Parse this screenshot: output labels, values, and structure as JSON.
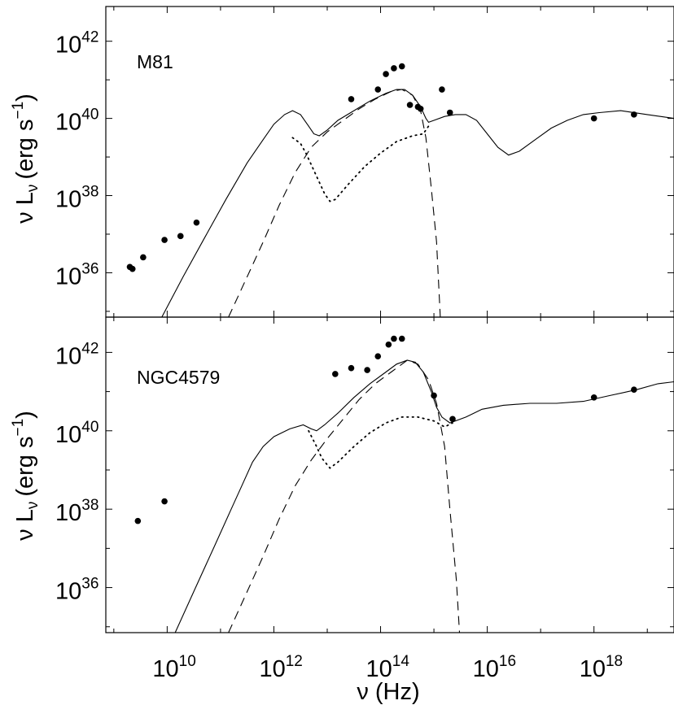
{
  "chart_data": [
    {
      "type": "line",
      "panel_label": "M81",
      "xlabel": "",
      "ylabel": [
        "ν L",
        "ν",
        "(erg s",
        "−1",
        ")"
      ],
      "x_scale": "log",
      "y_scale": "log",
      "xlim_log10": [
        8.85,
        19.5
      ],
      "ylim_log10": [
        34.85,
        42.9
      ],
      "x_ticks": [
        {
          "base": "10",
          "exp": "10"
        },
        {
          "base": "10",
          "exp": "12"
        },
        {
          "base": "10",
          "exp": "14"
        },
        {
          "base": "10",
          "exp": "16"
        },
        {
          "base": "10",
          "exp": "18"
        }
      ],
      "y_ticks": [
        {
          "base": "10",
          "exp": "36"
        },
        {
          "base": "10",
          "exp": "38"
        },
        {
          "base": "10",
          "exp": "40"
        },
        {
          "base": "10",
          "exp": "42"
        }
      ],
      "grid": false,
      "legend": "none",
      "series": [
        {
          "style": "solid",
          "points_log10": [
            [
              9.9,
              34.85
            ],
            [
              10.3,
              35.9
            ],
            [
              10.7,
              36.9
            ],
            [
              11.1,
              37.9
            ],
            [
              11.5,
              38.85
            ],
            [
              11.8,
              39.45
            ],
            [
              12.0,
              39.85
            ],
            [
              12.2,
              40.1
            ],
            [
              12.35,
              40.2
            ],
            [
              12.5,
              40.1
            ],
            [
              12.65,
              39.8
            ],
            [
              12.75,
              39.6
            ],
            [
              12.85,
              39.55
            ],
            [
              13.0,
              39.7
            ],
            [
              13.2,
              39.95
            ],
            [
              13.5,
              40.2
            ],
            [
              13.8,
              40.45
            ],
            [
              14.1,
              40.65
            ],
            [
              14.3,
              40.75
            ],
            [
              14.45,
              40.75
            ],
            [
              14.6,
              40.6
            ],
            [
              14.75,
              40.3
            ],
            [
              14.85,
              40.0
            ],
            [
              14.9,
              39.9
            ],
            [
              15.0,
              39.95
            ],
            [
              15.2,
              40.05
            ],
            [
              15.4,
              40.1
            ],
            [
              15.6,
              40.1
            ],
            [
              15.8,
              39.95
            ],
            [
              16.0,
              39.6
            ],
            [
              16.2,
              39.25
            ],
            [
              16.4,
              39.05
            ],
            [
              16.6,
              39.15
            ],
            [
              16.9,
              39.45
            ],
            [
              17.2,
              39.75
            ],
            [
              17.5,
              39.95
            ],
            [
              17.8,
              40.1
            ],
            [
              18.1,
              40.15
            ],
            [
              18.5,
              40.2
            ],
            [
              19.0,
              40.1
            ],
            [
              19.5,
              40.0
            ]
          ]
        },
        {
          "style": "dashed",
          "points_log10": [
            [
              11.15,
              34.85
            ],
            [
              11.5,
              35.9
            ],
            [
              11.8,
              36.8
            ],
            [
              12.1,
              37.75
            ],
            [
              12.4,
              38.6
            ],
            [
              12.7,
              39.25
            ],
            [
              13.0,
              39.65
            ],
            [
              13.3,
              39.95
            ],
            [
              13.6,
              40.25
            ],
            [
              13.9,
              40.5
            ],
            [
              14.2,
              40.7
            ],
            [
              14.4,
              40.75
            ],
            [
              14.6,
              40.6
            ],
            [
              14.75,
              40.2
            ],
            [
              14.85,
              39.5
            ],
            [
              14.95,
              38.2
            ],
            [
              15.05,
              36.8
            ],
            [
              15.12,
              34.85
            ]
          ]
        },
        {
          "style": "dotted",
          "points_log10": [
            [
              12.35,
              39.5
            ],
            [
              12.5,
              39.35
            ],
            [
              12.6,
              39.1
            ],
            [
              12.8,
              38.5
            ],
            [
              12.95,
              38.05
            ],
            [
              13.05,
              37.85
            ],
            [
              13.15,
              37.9
            ],
            [
              13.4,
              38.3
            ],
            [
              13.7,
              38.75
            ],
            [
              14.0,
              39.1
            ],
            [
              14.3,
              39.4
            ],
            [
              14.6,
              39.55
            ],
            [
              14.8,
              39.6
            ],
            [
              14.9,
              39.8
            ]
          ]
        },
        {
          "style": "points",
          "points_log10": [
            [
              9.3,
              36.15
            ],
            [
              9.35,
              36.1
            ],
            [
              9.55,
              36.4
            ],
            [
              9.95,
              36.85
            ],
            [
              10.25,
              36.95
            ],
            [
              10.55,
              37.3
            ],
            [
              13.45,
              40.5
            ],
            [
              13.95,
              40.75
            ],
            [
              14.1,
              41.15
            ],
            [
              14.25,
              41.3
            ],
            [
              14.4,
              41.35
            ],
            [
              14.55,
              40.35
            ],
            [
              14.7,
              40.3
            ],
            [
              14.75,
              40.25
            ],
            [
              15.15,
              40.75
            ],
            [
              15.3,
              40.15
            ],
            [
              18.0,
              40.0
            ],
            [
              18.75,
              40.1
            ]
          ]
        }
      ]
    },
    {
      "type": "line",
      "panel_label": "NGC4579",
      "xlabel": "ν (Hz)",
      "ylabel": [
        "ν L",
        "ν",
        "(erg s",
        "−1",
        ")"
      ],
      "x_scale": "log",
      "y_scale": "log",
      "xlim_log10": [
        8.85,
        19.5
      ],
      "ylim_log10": [
        34.85,
        42.9
      ],
      "x_ticks": [
        {
          "base": "10",
          "exp": "10"
        },
        {
          "base": "10",
          "exp": "12"
        },
        {
          "base": "10",
          "exp": "14"
        },
        {
          "base": "10",
          "exp": "16"
        },
        {
          "base": "10",
          "exp": "18"
        }
      ],
      "y_ticks": [
        {
          "base": "10",
          "exp": "36"
        },
        {
          "base": "10",
          "exp": "38"
        },
        {
          "base": "10",
          "exp": "40"
        },
        {
          "base": "10",
          "exp": "42"
        }
      ],
      "grid": false,
      "legend": "none",
      "series": [
        {
          "style": "solid",
          "points_log10": [
            [
              10.15,
              34.85
            ],
            [
              10.5,
              35.9
            ],
            [
              10.9,
              37.1
            ],
            [
              11.2,
              38.0
            ],
            [
              11.4,
              38.6
            ],
            [
              11.6,
              39.2
            ],
            [
              11.8,
              39.6
            ],
            [
              12.0,
              39.85
            ],
            [
              12.3,
              40.05
            ],
            [
              12.55,
              40.15
            ],
            [
              12.7,
              40.05
            ],
            [
              12.8,
              40.0
            ],
            [
              12.95,
              40.15
            ],
            [
              13.2,
              40.45
            ],
            [
              13.5,
              40.85
            ],
            [
              13.8,
              41.2
            ],
            [
              14.1,
              41.5
            ],
            [
              14.3,
              41.7
            ],
            [
              14.5,
              41.8
            ],
            [
              14.65,
              41.75
            ],
            [
              14.8,
              41.5
            ],
            [
              14.95,
              41.0
            ],
            [
              15.05,
              40.6
            ],
            [
              15.15,
              40.35
            ],
            [
              15.3,
              40.2
            ],
            [
              15.6,
              40.35
            ],
            [
              15.9,
              40.55
            ],
            [
              16.3,
              40.65
            ],
            [
              16.8,
              40.7
            ],
            [
              17.3,
              40.7
            ],
            [
              17.8,
              40.75
            ],
            [
              18.3,
              40.9
            ],
            [
              18.8,
              41.05
            ],
            [
              19.2,
              41.2
            ],
            [
              19.5,
              41.25
            ]
          ]
        },
        {
          "style": "dashed",
          "points_log10": [
            [
              11.15,
              34.85
            ],
            [
              11.5,
              35.9
            ],
            [
              11.8,
              36.8
            ],
            [
              12.1,
              37.75
            ],
            [
              12.4,
              38.6
            ],
            [
              12.7,
              39.25
            ],
            [
              13.0,
              39.8
            ],
            [
              13.3,
              40.3
            ],
            [
              13.6,
              40.8
            ],
            [
              13.9,
              41.2
            ],
            [
              14.2,
              41.5
            ],
            [
              14.5,
              41.8
            ],
            [
              14.7,
              41.7
            ],
            [
              14.9,
              41.3
            ],
            [
              15.05,
              40.7
            ],
            [
              15.2,
              39.6
            ],
            [
              15.3,
              38.0
            ],
            [
              15.42,
              36.2
            ],
            [
              15.48,
              34.85
            ]
          ]
        },
        {
          "style": "dotted",
          "points_log10": [
            [
              12.65,
              40.0
            ],
            [
              12.8,
              39.6
            ],
            [
              12.9,
              39.3
            ],
            [
              13.05,
              39.05
            ],
            [
              13.2,
              39.2
            ],
            [
              13.5,
              39.6
            ],
            [
              13.8,
              39.95
            ],
            [
              14.1,
              40.2
            ],
            [
              14.4,
              40.35
            ],
            [
              14.7,
              40.35
            ],
            [
              15.0,
              40.25
            ],
            [
              15.2,
              40.1
            ],
            [
              15.35,
              40.2
            ]
          ]
        },
        {
          "style": "points",
          "points_log10": [
            [
              9.45,
              37.7
            ],
            [
              9.95,
              38.2
            ],
            [
              13.15,
              41.45
            ],
            [
              13.45,
              41.6
            ],
            [
              13.75,
              41.55
            ],
            [
              13.95,
              41.9
            ],
            [
              14.15,
              42.2
            ],
            [
              14.25,
              42.35
            ],
            [
              14.4,
              42.35
            ],
            [
              15.0,
              40.9
            ],
            [
              15.35,
              40.3
            ],
            [
              18.0,
              40.85
            ],
            [
              18.75,
              41.05
            ]
          ]
        }
      ]
    }
  ]
}
